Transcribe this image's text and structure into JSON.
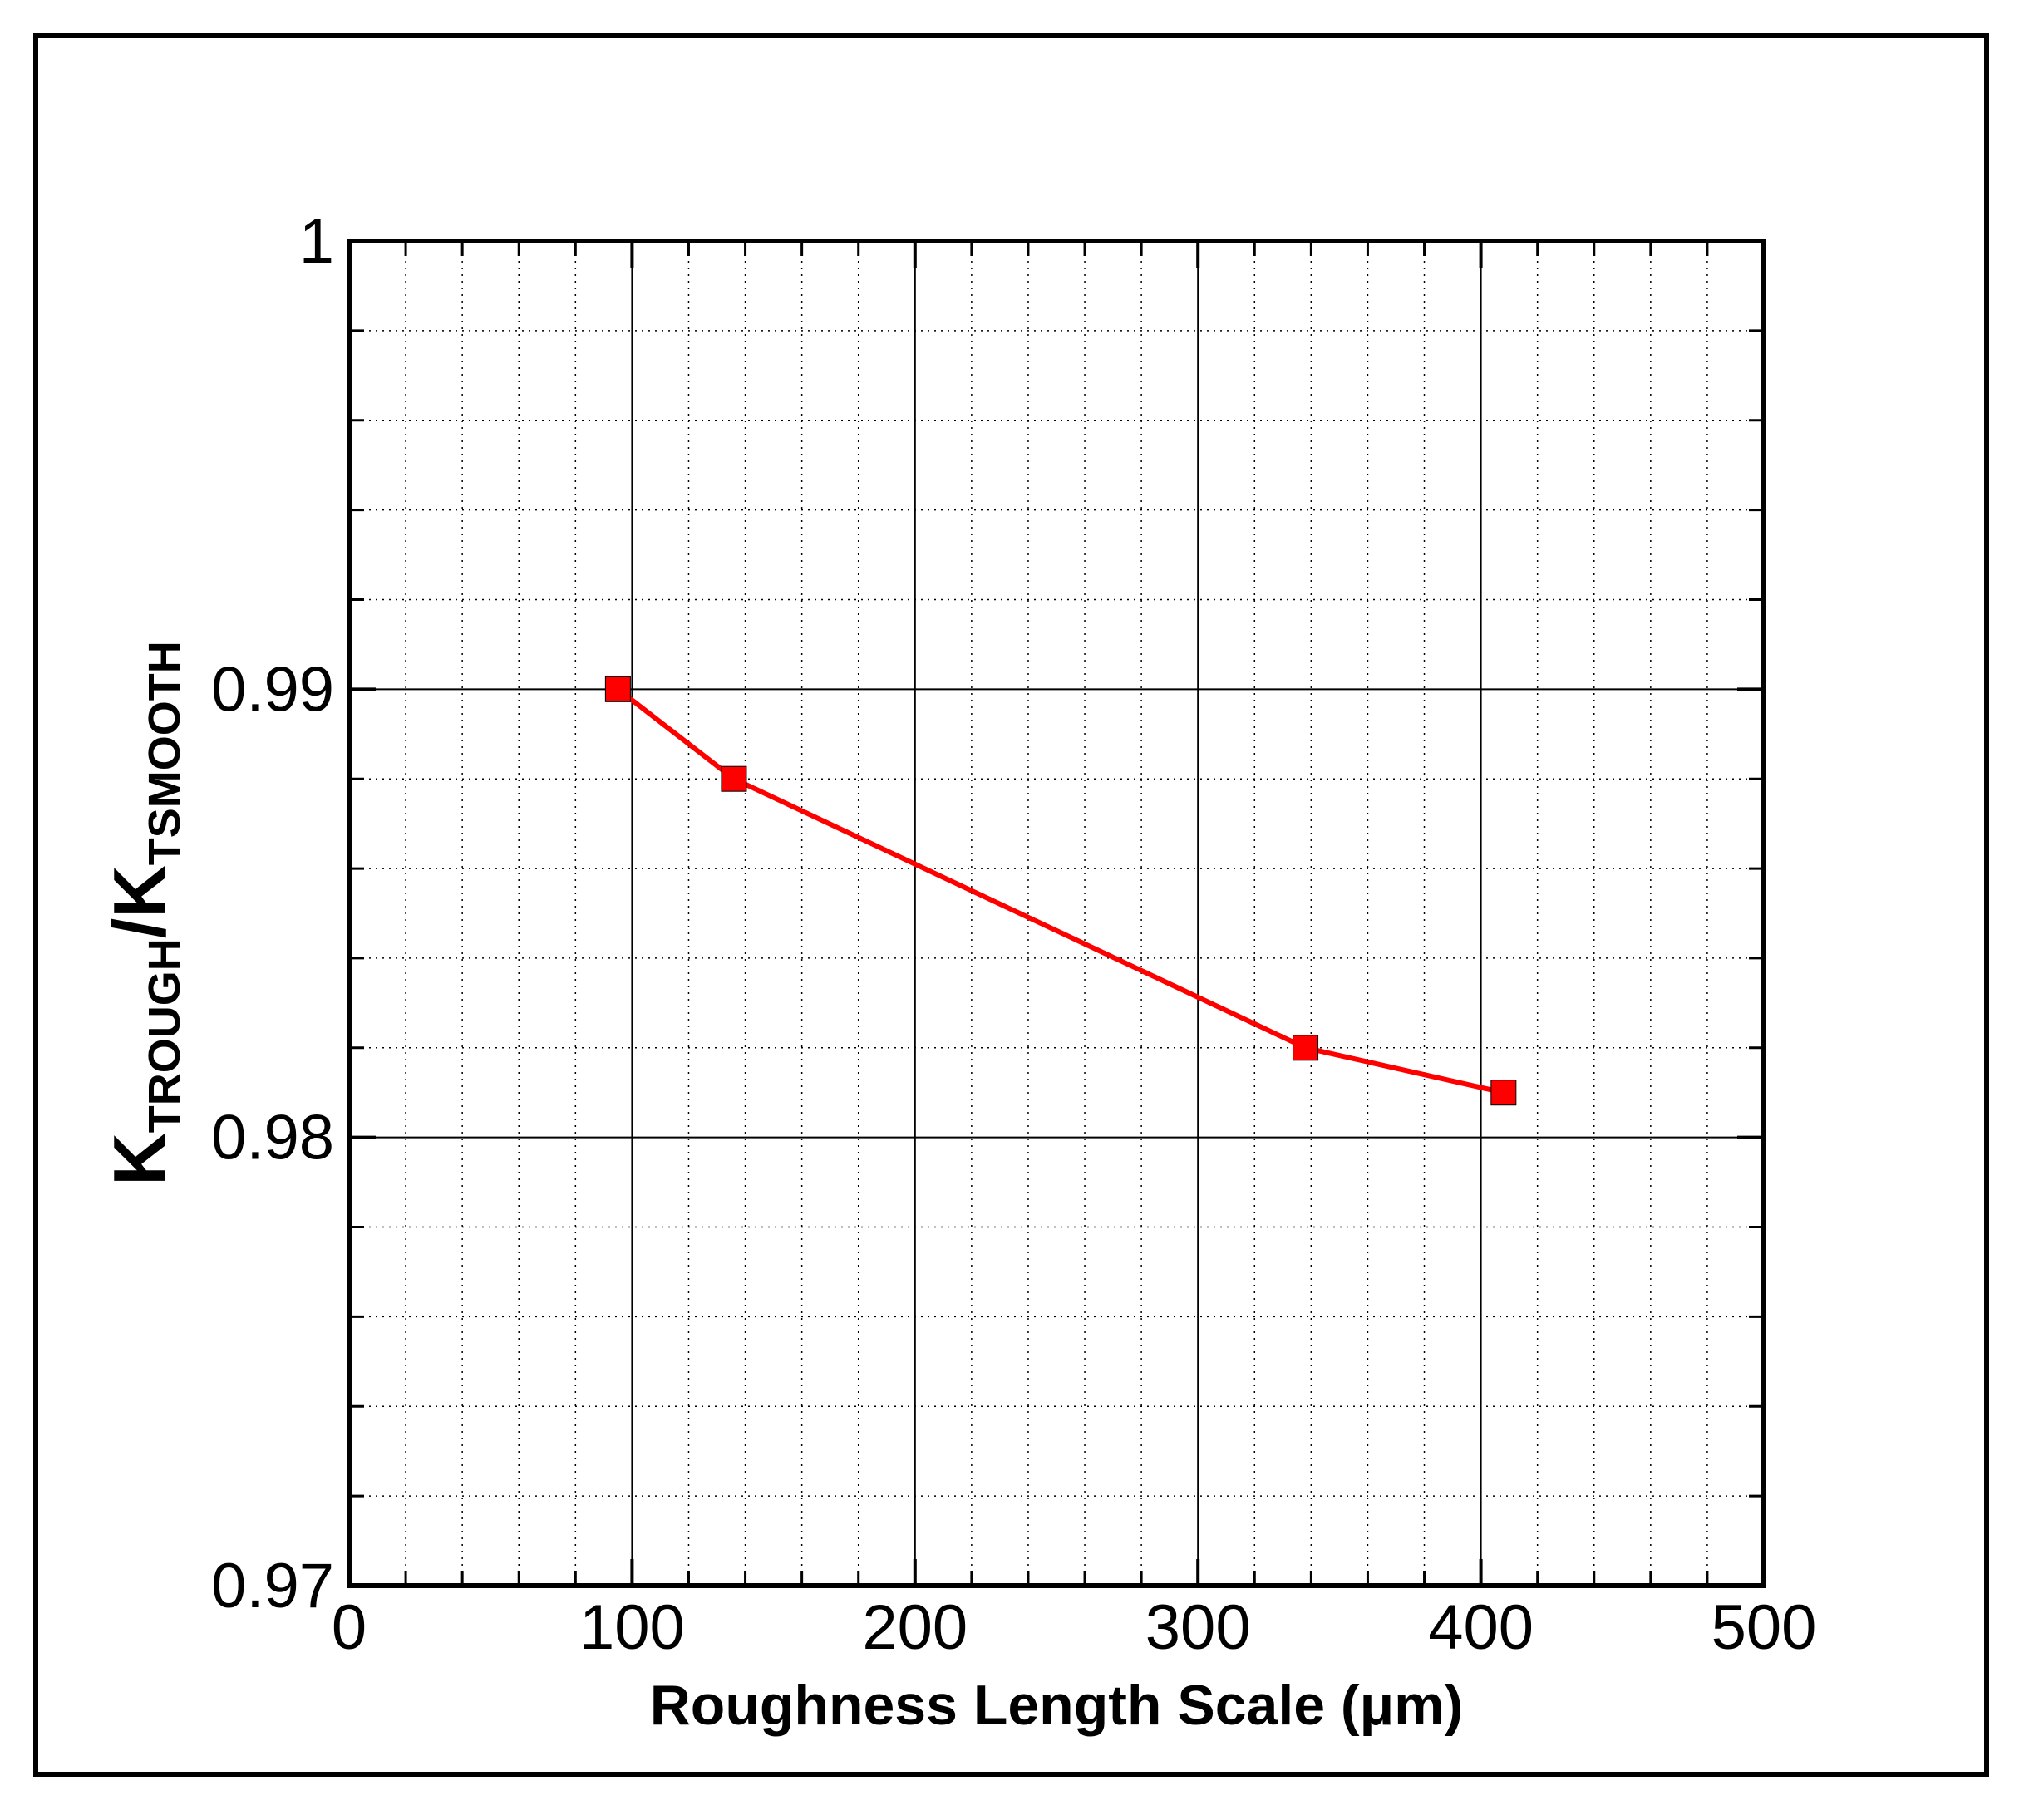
{
  "chart_data": {
    "type": "line",
    "title": "",
    "xlabel": "Roughness Length Scale (μm)",
    "ylabel": {
      "main_1": "K",
      "sub_1": "TROUGH",
      "sep": "/K",
      "sub_2": "TSMOOTH"
    },
    "xlim": [
      0,
      500
    ],
    "ylim": [
      0.97,
      1.0
    ],
    "x_ticks": [
      0,
      100,
      200,
      300,
      400,
      500
    ],
    "x_tick_labels": [
      "0",
      "100",
      "200",
      "300",
      "400",
      "500"
    ],
    "y_ticks": [
      0.97,
      0.98,
      0.99,
      1.0
    ],
    "y_tick_labels": [
      "0.97",
      "0.98",
      "0.99",
      "1"
    ],
    "grid": true,
    "legend": "none",
    "series": [
      {
        "x": [
          95,
          136,
          338,
          408
        ],
        "y": [
          0.99,
          0.988,
          0.982,
          0.981
        ],
        "color": "#ff0000",
        "marker": "square"
      }
    ]
  }
}
